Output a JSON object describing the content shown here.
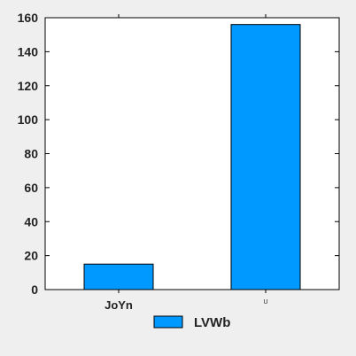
{
  "chart_data": {
    "type": "bar",
    "categories": [
      "JoYn",
      "U"
    ],
    "series": [
      {
        "name": "LVWb",
        "values": [
          15,
          156
        ],
        "color": "#0099ff"
      }
    ],
    "ylim": [
      0,
      160
    ],
    "yticks": [
      0,
      20,
      40,
      60,
      80,
      100,
      120,
      140,
      160
    ],
    "grid": false,
    "legend": {
      "placement": "bottom-center"
    },
    "title": "",
    "xlabel": "",
    "ylabel": ""
  }
}
